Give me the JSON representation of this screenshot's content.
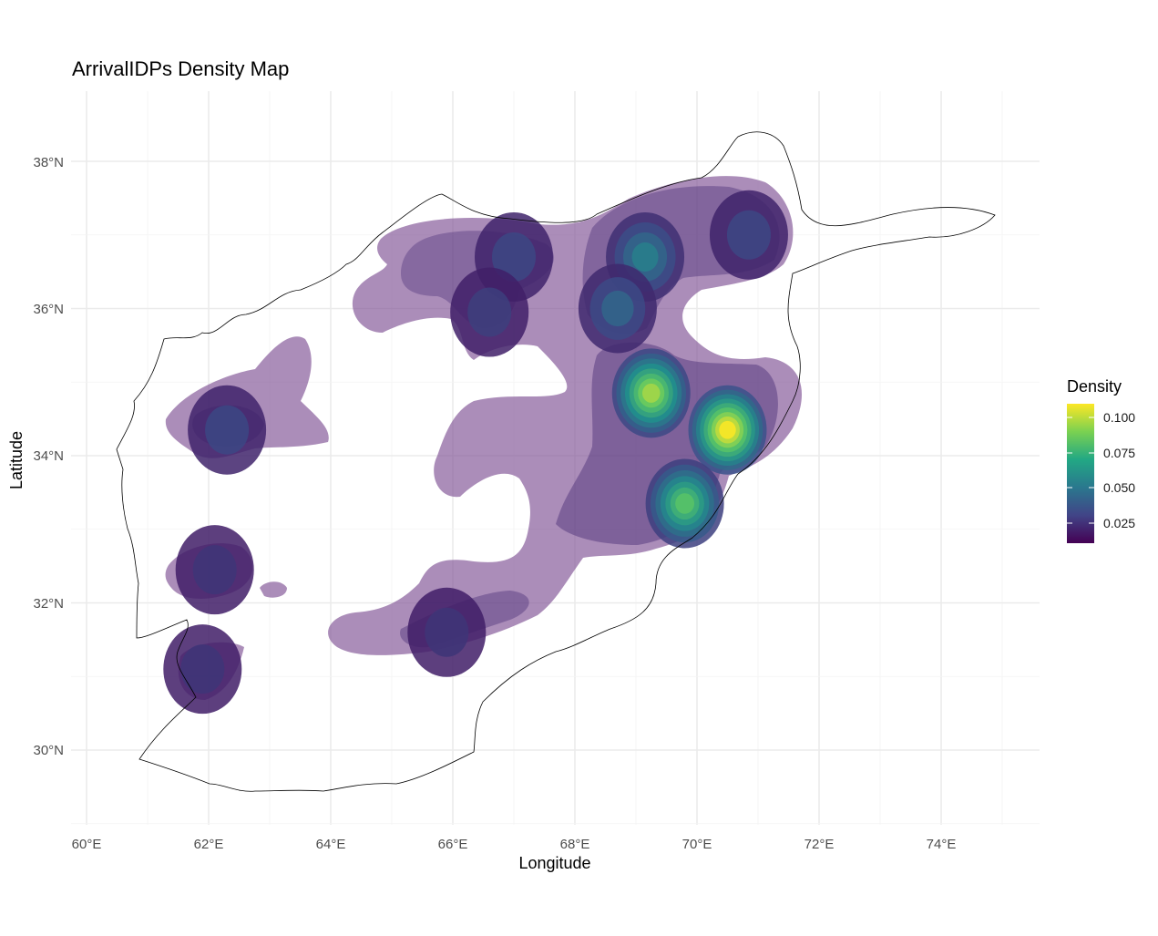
{
  "title": "ArrivalIDPs Density Map",
  "x_label": "Longitude",
  "y_label": "Latitude",
  "x_ticks": [
    "60°E",
    "62°E",
    "64°E",
    "66°E",
    "68°E",
    "70°E",
    "72°E",
    "74°E"
  ],
  "y_ticks": [
    "38°N",
    "36°N",
    "34°N",
    "32°N",
    "30°N"
  ],
  "legend": {
    "title": "Density",
    "labels": [
      "0.100",
      "0.075",
      "0.050",
      "0.025"
    ],
    "colors": [
      "#fde725",
      "#7ad151",
      "#22a884",
      "#2a788e",
      "#414487",
      "#440154"
    ]
  },
  "chart_data": {
    "type": "heatmap",
    "xlim": [
      60,
      75.5
    ],
    "ylim": [
      29,
      38.9
    ],
    "grid": true,
    "legend_position": "right",
    "density_range": [
      0,
      0.11
    ],
    "hotspots": [
      {
        "lon": 69.25,
        "lat": 34.85,
        "density": 0.095
      },
      {
        "lon": 70.5,
        "lat": 34.35,
        "density": 0.11
      },
      {
        "lon": 69.8,
        "lat": 33.35,
        "density": 0.08
      },
      {
        "lon": 69.15,
        "lat": 36.7,
        "density": 0.05
      },
      {
        "lon": 68.7,
        "lat": 36.0,
        "density": 0.04
      },
      {
        "lon": 70.85,
        "lat": 37.0,
        "density": 0.03
      },
      {
        "lon": 67.0,
        "lat": 36.7,
        "density": 0.03
      },
      {
        "lon": 66.6,
        "lat": 35.95,
        "density": 0.025
      },
      {
        "lon": 62.3,
        "lat": 34.35,
        "density": 0.03
      },
      {
        "lon": 62.1,
        "lat": 32.45,
        "density": 0.02
      },
      {
        "lon": 65.9,
        "lat": 31.6,
        "density": 0.02
      },
      {
        "lon": 61.9,
        "lat": 31.1,
        "density": 0.02
      }
    ]
  }
}
